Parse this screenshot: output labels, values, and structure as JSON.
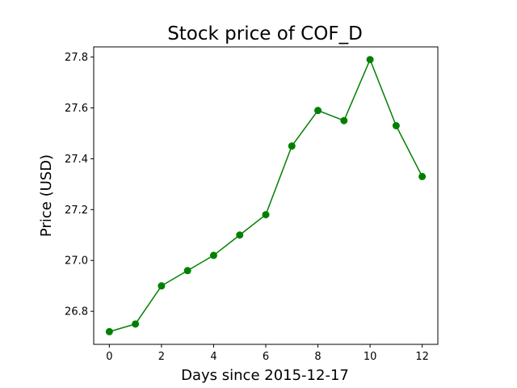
{
  "chart_data": {
    "type": "line",
    "title": "Stock price of COF_D",
    "xlabel": "Days since 2015-12-17",
    "ylabel": "Price (USD)",
    "x": [
      0,
      1,
      2,
      3,
      4,
      5,
      6,
      7,
      8,
      9,
      10,
      11,
      12
    ],
    "series": [
      {
        "values": [
          26.72,
          26.75,
          26.9,
          26.96,
          27.02,
          27.1,
          27.18,
          27.45,
          27.59,
          27.55,
          27.79,
          27.53,
          27.33
        ],
        "color": "#008000",
        "marker": "circle"
      }
    ],
    "xlim": [
      -0.6,
      12.6
    ],
    "ylim": [
      26.67,
      27.84
    ],
    "xticks": [
      0,
      2,
      4,
      6,
      8,
      10,
      12
    ],
    "xtick_labels": [
      "0",
      "2",
      "4",
      "6",
      "8",
      "10",
      "12"
    ],
    "yticks": [
      26.8,
      27.0,
      27.2,
      27.4,
      27.6,
      27.8
    ],
    "ytick_labels": [
      "26.8",
      "27.0",
      "27.2",
      "27.4",
      "27.6",
      "27.8"
    ],
    "grid": false,
    "legend": false
  }
}
